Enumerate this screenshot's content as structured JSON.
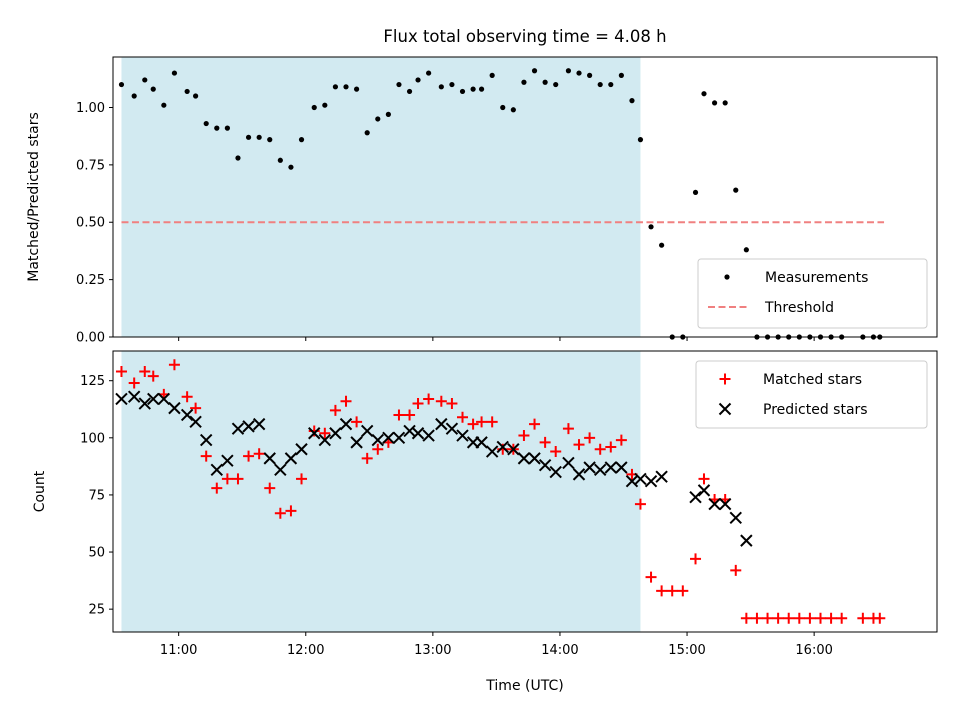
{
  "colors": {
    "shade": "#add8e6",
    "threshold": "#f08080",
    "matched": "#ff0000",
    "predicted": "#000000",
    "measurement": "#000000"
  },
  "chart_data": [
    {
      "type": "scatter",
      "title": "Flux total observing time = 4.08 h",
      "xlabel": "",
      "ylabel": "Matched/Predicted stars",
      "xlim": [
        "10:29",
        "16:58"
      ],
      "ylim": [
        0,
        1.22
      ],
      "yticks": [
        "0.00",
        "0.25",
        "0.50",
        "0.75",
        "1.00"
      ],
      "ytick_values": [
        0,
        0.25,
        0.5,
        0.75,
        1.0
      ],
      "xticks": [
        "11:00",
        "12:00",
        "13:00",
        "14:00",
        "15:00",
        "16:00"
      ],
      "shaded_span": [
        "10:33",
        "14:38"
      ],
      "threshold": {
        "name": "Threshold",
        "y": 0.5,
        "x": [
          "10:33",
          "16:33"
        ]
      },
      "legend": {
        "placement": "lower-right",
        "entries": [
          "Measurements",
          "Threshold"
        ]
      },
      "series": [
        {
          "name": "Measurements",
          "marker": "dot",
          "points": [
            [
              "10:33",
              1.1
            ],
            [
              "10:39",
              1.05
            ],
            [
              "10:44",
              1.12
            ],
            [
              "10:48",
              1.08
            ],
            [
              "10:53",
              1.01
            ],
            [
              "10:58",
              1.15
            ],
            [
              "11:04",
              1.07
            ],
            [
              "11:08",
              1.05
            ],
            [
              "11:13",
              0.93
            ],
            [
              "11:18",
              0.91
            ],
            [
              "11:23",
              0.91
            ],
            [
              "11:28",
              0.78
            ],
            [
              "11:33",
              0.87
            ],
            [
              "11:38",
              0.87
            ],
            [
              "11:43",
              0.86
            ],
            [
              "11:48",
              0.77
            ],
            [
              "11:53",
              0.74
            ],
            [
              "11:58",
              0.86
            ],
            [
              "12:04",
              1.0
            ],
            [
              "12:09",
              1.01
            ],
            [
              "12:14",
              1.09
            ],
            [
              "12:19",
              1.09
            ],
            [
              "12:24",
              1.08
            ],
            [
              "12:29",
              0.89
            ],
            [
              "12:34",
              0.95
            ],
            [
              "12:39",
              0.97
            ],
            [
              "12:44",
              1.1
            ],
            [
              "12:49",
              1.07
            ],
            [
              "12:53",
              1.12
            ],
            [
              "12:58",
              1.15
            ],
            [
              "13:04",
              1.09
            ],
            [
              "13:09",
              1.1
            ],
            [
              "13:14",
              1.07
            ],
            [
              "13:19",
              1.08
            ],
            [
              "13:23",
              1.08
            ],
            [
              "13:28",
              1.14
            ],
            [
              "13:33",
              1.0
            ],
            [
              "13:38",
              0.99
            ],
            [
              "13:43",
              1.11
            ],
            [
              "13:48",
              1.16
            ],
            [
              "13:53",
              1.11
            ],
            [
              "13:58",
              1.1
            ],
            [
              "14:04",
              1.16
            ],
            [
              "14:09",
              1.15
            ],
            [
              "14:14",
              1.14
            ],
            [
              "14:19",
              1.1
            ],
            [
              "14:24",
              1.1
            ],
            [
              "14:29",
              1.14
            ],
            [
              "14:34",
              1.03
            ],
            [
              "14:38",
              0.86
            ],
            [
              "14:43",
              0.48
            ],
            [
              "14:48",
              0.4
            ],
            [
              "14:53",
              0.0
            ],
            [
              "14:58",
              0.0
            ],
            [
              "15:04",
              0.63
            ],
            [
              "15:08",
              1.06
            ],
            [
              "15:13",
              1.02
            ],
            [
              "15:18",
              1.02
            ],
            [
              "15:23",
              0.64
            ],
            [
              "15:28",
              0.38
            ],
            [
              "15:33",
              0.0
            ],
            [
              "15:38",
              0.0
            ],
            [
              "15:43",
              0.0
            ],
            [
              "15:48",
              0.0
            ],
            [
              "15:53",
              0.0
            ],
            [
              "15:58",
              0.0
            ],
            [
              "16:03",
              0.0
            ],
            [
              "16:08",
              0.0
            ],
            [
              "16:13",
              0.0
            ],
            [
              "16:23",
              0.0
            ],
            [
              "16:28",
              0.0
            ],
            [
              "16:31",
              0.0
            ]
          ]
        }
      ]
    },
    {
      "type": "scatter",
      "title": "",
      "xlabel": "Time (UTC)",
      "ylabel": "Count",
      "xlim": [
        "10:29",
        "16:58"
      ],
      "ylim": [
        15,
        138
      ],
      "yticks": [
        "25",
        "50",
        "75",
        "100",
        "125"
      ],
      "ytick_values": [
        25,
        50,
        75,
        100,
        125
      ],
      "xticks": [
        "11:00",
        "12:00",
        "13:00",
        "14:00",
        "15:00",
        "16:00"
      ],
      "shaded_span": [
        "10:33",
        "14:38"
      ],
      "legend": {
        "placement": "upper-right",
        "entries": [
          "Matched stars",
          "Predicted stars"
        ]
      },
      "series": [
        {
          "name": "Matched stars",
          "marker": "plus",
          "points": [
            [
              "10:33",
              129
            ],
            [
              "10:39",
              124
            ],
            [
              "10:44",
              129
            ],
            [
              "10:48",
              127
            ],
            [
              "10:53",
              119
            ],
            [
              "10:58",
              132
            ],
            [
              "11:04",
              118
            ],
            [
              "11:08",
              113
            ],
            [
              "11:13",
              92
            ],
            [
              "11:18",
              78
            ],
            [
              "11:23",
              82
            ],
            [
              "11:28",
              82
            ],
            [
              "11:33",
              92
            ],
            [
              "11:38",
              93
            ],
            [
              "11:43",
              78
            ],
            [
              "11:48",
              67
            ],
            [
              "11:53",
              68
            ],
            [
              "11:58",
              82
            ],
            [
              "12:04",
              103
            ],
            [
              "12:09",
              102
            ],
            [
              "12:14",
              112
            ],
            [
              "12:19",
              116
            ],
            [
              "12:24",
              107
            ],
            [
              "12:29",
              91
            ],
            [
              "12:34",
              95
            ],
            [
              "12:39",
              98
            ],
            [
              "12:44",
              110
            ],
            [
              "12:49",
              110
            ],
            [
              "12:53",
              115
            ],
            [
              "12:58",
              117
            ],
            [
              "13:04",
              116
            ],
            [
              "13:09",
              115
            ],
            [
              "13:14",
              109
            ],
            [
              "13:19",
              106
            ],
            [
              "13:23",
              107
            ],
            [
              "13:28",
              107
            ],
            [
              "13:33",
              95
            ],
            [
              "13:38",
              95
            ],
            [
              "13:43",
              101
            ],
            [
              "13:48",
              106
            ],
            [
              "13:53",
              98
            ],
            [
              "13:58",
              94
            ],
            [
              "14:04",
              104
            ],
            [
              "14:09",
              97
            ],
            [
              "14:14",
              100
            ],
            [
              "14:19",
              95
            ],
            [
              "14:24",
              96
            ],
            [
              "14:29",
              99
            ],
            [
              "14:34",
              84
            ],
            [
              "14:38",
              71
            ],
            [
              "14:43",
              39
            ],
            [
              "14:48",
              33
            ],
            [
              "14:53",
              33
            ],
            [
              "14:58",
              33
            ],
            [
              "15:04",
              47
            ],
            [
              "15:08",
              82
            ],
            [
              "15:13",
              73
            ],
            [
              "15:18",
              73
            ],
            [
              "15:23",
              42
            ],
            [
              "15:28",
              21
            ],
            [
              "15:33",
              21
            ],
            [
              "15:38",
              21
            ],
            [
              "15:43",
              21
            ],
            [
              "15:48",
              21
            ],
            [
              "15:53",
              21
            ],
            [
              "15:58",
              21
            ],
            [
              "16:03",
              21
            ],
            [
              "16:08",
              21
            ],
            [
              "16:13",
              21
            ],
            [
              "16:23",
              21
            ],
            [
              "16:28",
              21
            ],
            [
              "16:31",
              21
            ]
          ]
        },
        {
          "name": "Predicted stars",
          "marker": "x",
          "points": [
            [
              "10:33",
              117
            ],
            [
              "10:39",
              118
            ],
            [
              "10:44",
              115
            ],
            [
              "10:48",
              117
            ],
            [
              "10:53",
              117
            ],
            [
              "10:58",
              113
            ],
            [
              "11:04",
              110
            ],
            [
              "11:08",
              107
            ],
            [
              "11:13",
              99
            ],
            [
              "11:18",
              86
            ],
            [
              "11:23",
              90
            ],
            [
              "11:28",
              104
            ],
            [
              "11:33",
              105
            ],
            [
              "11:38",
              106
            ],
            [
              "11:43",
              91
            ],
            [
              "11:48",
              86
            ],
            [
              "11:53",
              91
            ],
            [
              "11:58",
              95
            ],
            [
              "12:04",
              102
            ],
            [
              "12:09",
              99
            ],
            [
              "12:14",
              102
            ],
            [
              "12:19",
              106
            ],
            [
              "12:24",
              98
            ],
            [
              "12:29",
              103
            ],
            [
              "12:34",
              99
            ],
            [
              "12:39",
              100
            ],
            [
              "12:44",
              100
            ],
            [
              "12:49",
              103
            ],
            [
              "12:53",
              102
            ],
            [
              "12:58",
              101
            ],
            [
              "13:04",
              106
            ],
            [
              "13:09",
              104
            ],
            [
              "13:14",
              101
            ],
            [
              "13:19",
              98
            ],
            [
              "13:23",
              98
            ],
            [
              "13:28",
              94
            ],
            [
              "13:33",
              96
            ],
            [
              "13:38",
              95
            ],
            [
              "13:43",
              91
            ],
            [
              "13:48",
              91
            ],
            [
              "13:53",
              88
            ],
            [
              "13:58",
              85
            ],
            [
              "14:04",
              89
            ],
            [
              "14:09",
              84
            ],
            [
              "14:14",
              87
            ],
            [
              "14:19",
              86
            ],
            [
              "14:24",
              87
            ],
            [
              "14:29",
              87
            ],
            [
              "14:34",
              81
            ],
            [
              "14:38",
              82
            ],
            [
              "14:43",
              81
            ],
            [
              "14:48",
              83
            ],
            [
              "15:04",
              74
            ],
            [
              "15:08",
              77
            ],
            [
              "15:13",
              71
            ],
            [
              "15:18",
              71
            ],
            [
              "15:23",
              65
            ],
            [
              "15:28",
              55
            ]
          ]
        }
      ]
    }
  ]
}
